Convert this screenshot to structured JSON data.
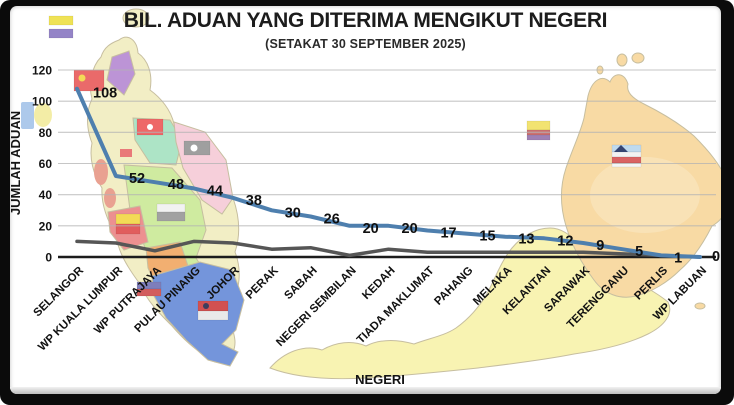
{
  "chart_data": {
    "type": "line",
    "title": "BIL. ADUAN YANG DITERIMA MENGIKUT NEGERI",
    "subtitle": "(SETAKAT 30 SEPTEMBER 2025)",
    "xlabel": "NEGERI",
    "ylabel": "JUMLAH ADUAN",
    "ylim": [
      0,
      120
    ],
    "yticks": [
      0,
      20,
      40,
      60,
      80,
      100,
      120
    ],
    "grid": true,
    "legend": "none",
    "categories": [
      "SELANGOR",
      "WP KUALA LUMPUR",
      "WP PUTRAJAYA",
      "PULAU PINANG",
      "JOHOR",
      "PERAK",
      "SABAH",
      "NEGERI SEMBILAN",
      "KEDAH",
      "TIADA MAKLUMAT",
      "PAHANG",
      "MELAKA",
      "KELANTAN",
      "SARAWAK",
      "TERENGGANU",
      "PERLIS",
      "WP LABUAN"
    ],
    "series": [
      {
        "id": "bil-aduan",
        "color": "#4e7fae",
        "width": 4,
        "labels_visible": true,
        "values": [
          108,
          52,
          48,
          44,
          38,
          30,
          26,
          20,
          20,
          17,
          15,
          13,
          12,
          9,
          5,
          1,
          0
        ]
      },
      {
        "id": "unlabeled-gray-series",
        "color": "#565656",
        "width": 3.5,
        "labels_visible": false,
        "values": [
          10,
          9,
          4,
          10,
          9,
          5,
          6,
          1,
          5,
          3,
          3,
          3,
          3,
          3,
          2,
          1,
          0
        ]
      }
    ],
    "grid_color": "#b3b3b3",
    "axis_color": "#1c1c1c",
    "label_color": "#121212"
  },
  "background_map": {
    "name": "malaysia-map",
    "colors": {
      "peninsula_base": "#f2eec2",
      "kelantan_mint": "#a9e3c3",
      "terengganu_pink": "#f6cdd9",
      "pahang_green": "#cdea9b",
      "perlis_purple": "#b98fd4",
      "selangor_red": "#ec8b8b",
      "n9_orange": "#f2ab6a",
      "melaka_red": "#e87272",
      "johor_blue": "#6d90da",
      "sarawak_yellow": "#f8f3ae",
      "sabah_orange": "#f8d9a0",
      "salmon": "#e89c8c",
      "outline": "#c4bb9b"
    }
  }
}
